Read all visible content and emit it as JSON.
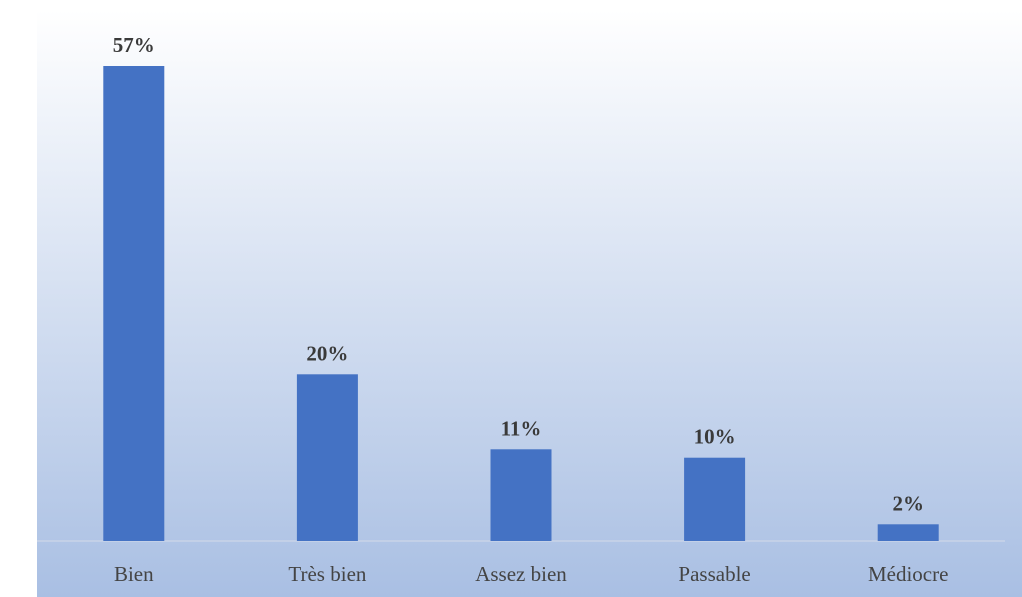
{
  "chart_data": {
    "type": "bar",
    "categories": [
      "Bien",
      "Très bien",
      "Assez bien",
      "Passable",
      "Médiocre"
    ],
    "values": [
      57,
      20,
      11,
      10,
      2
    ],
    "value_labels": [
      "57%",
      "20%",
      "11%",
      "10%",
      "2%"
    ],
    "ylim": [
      0,
      57
    ],
    "grid": false,
    "legend": "none",
    "bar_color": "#4472C4"
  },
  "colors": {
    "plot_background_top": "#ffffff",
    "plot_background_bottom": "#a9bfe3",
    "axis": "#c9d4e8"
  }
}
